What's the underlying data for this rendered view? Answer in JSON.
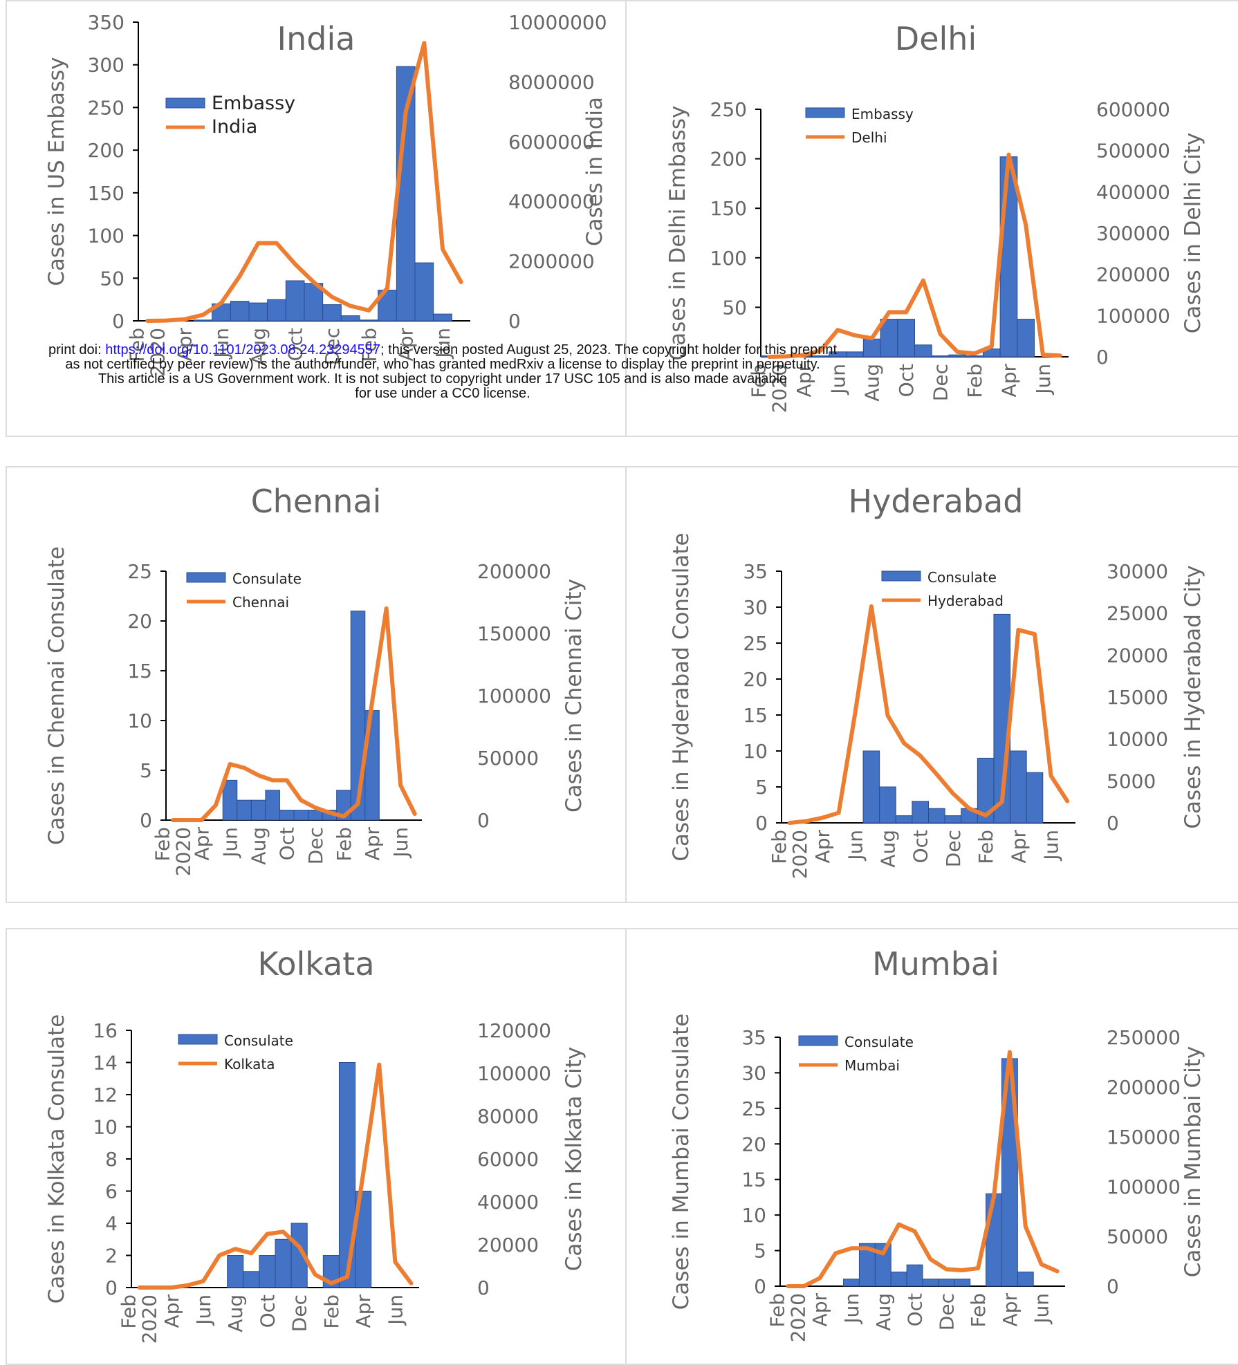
{
  "colors": {
    "bar": "#4472c4",
    "bar_stroke": "#2a4d8f",
    "line": "#ed7d31",
    "text": "#666666"
  },
  "banner": {
    "line1_prefix": "print doi: ",
    "doi": "https://doi.org/10.1101/2023.08.24.23294557",
    "line1_suffix": "; this version posted August 25, 2023. The copyright holder for this preprint",
    "line2": "as not certified by peer review) is the author/funder, who has granted medRxiv a license to display the preprint in perpetuity.",
    "line3": "This article is a US Government work. It is not subject to copyright under 17 USC 105 and is also made available",
    "line4": "for use under a CC0 license."
  },
  "chart_data": [
    {
      "type": "bar",
      "title": "India",
      "ylabel": "Cases  in US Embassy",
      "y2label": "Cases in India",
      "ylim": [
        0,
        350
      ],
      "yticks": [
        0,
        50,
        100,
        150,
        200,
        250,
        300,
        350
      ],
      "y2lim": [
        0,
        10000000
      ],
      "y2ticks": [
        0,
        2000000,
        4000000,
        6000000,
        8000000,
        10000000
      ],
      "categories": [
        "Feb 2020",
        "Mar",
        "Apr",
        "May",
        "Jun",
        "Jul",
        "Aug",
        "Sep",
        "Oct",
        "Nov",
        "Dec",
        "Jan",
        "Feb",
        "Mar",
        "Apr",
        "May",
        "Jun",
        "Jul"
      ],
      "xticklabels": [
        "Feb\n2020",
        "Apr",
        "Jun",
        "Aug",
        "Oct",
        "Dec",
        "Feb",
        "Apr",
        "Jun"
      ],
      "legend": [
        "Embassy",
        "India"
      ],
      "series": [
        {
          "name": "Embassy",
          "kind": "bar",
          "values": [
            0,
            0,
            0,
            1,
            20,
            23,
            21,
            25,
            47,
            44,
            19,
            6,
            1,
            36,
            298,
            68,
            8,
            0
          ]
        },
        {
          "name": "India",
          "kind": "line",
          "axis": "right",
          "values": [
            0,
            10000,
            50000,
            200000,
            600000,
            1500000,
            2600000,
            2600000,
            1900000,
            1300000,
            800000,
            500000,
            350000,
            1100000,
            7000000,
            9300000,
            2400000,
            1300000
          ]
        }
      ]
    },
    {
      "type": "bar",
      "title": "Delhi",
      "ylabel": "Cases in Delhi Embassy",
      "y2label": "Cases in Delhi City",
      "ylim": [
        0,
        250
      ],
      "yticks": [
        50,
        100,
        150,
        200,
        250
      ],
      "y2lim": [
        0,
        600000
      ],
      "y2ticks": [
        0,
        100000,
        200000,
        300000,
        400000,
        500000,
        600000
      ],
      "categories": [
        "Feb 2020",
        "Mar",
        "Apr",
        "May",
        "Jun",
        "Jul",
        "Aug",
        "Sep",
        "Oct",
        "Nov",
        "Dec",
        "Jan",
        "Feb",
        "Mar",
        "Apr",
        "May",
        "Jun",
        "Jul"
      ],
      "xticklabels": [
        "Feb\n2020",
        "Apr",
        "Jun",
        "Aug",
        "Oct",
        "Dec",
        "Feb",
        "Apr",
        "Jun"
      ],
      "legend": [
        "Embassy",
        "Delhi"
      ],
      "series": [
        {
          "name": "Embassy",
          "kind": "bar",
          "values": [
            1,
            1,
            1,
            1,
            5,
            5,
            18,
            38,
            38,
            12,
            1,
            2,
            1,
            8,
            202,
            38,
            0,
            0
          ]
        },
        {
          "name": "Delhi",
          "kind": "line",
          "axis": "right",
          "values": [
            0,
            1000,
            4000,
            15000,
            65000,
            52000,
            45000,
            108000,
            108000,
            185000,
            55000,
            12000,
            8000,
            25000,
            490000,
            320000,
            5000,
            3000
          ]
        }
      ]
    },
    {
      "type": "bar",
      "title": "Chennai",
      "ylabel": "Cases in Chennai Consulate",
      "y2label": "Cases in Chennai City",
      "ylim": [
        0,
        25
      ],
      "yticks": [
        0,
        5,
        10,
        15,
        20,
        25
      ],
      "y2lim": [
        0,
        200000
      ],
      "y2ticks": [
        0,
        50000,
        100000,
        150000,
        200000
      ],
      "categories": [
        "Feb 2020",
        "Mar",
        "Apr",
        "May",
        "Jun",
        "Jul",
        "Aug",
        "Sep",
        "Oct",
        "Nov",
        "Dec",
        "Jan",
        "Feb",
        "Mar",
        "Apr",
        "May",
        "Jun",
        "Jul"
      ],
      "xticklabels": [
        "Feb\n2020",
        "Apr",
        "Jun",
        "Aug",
        "Oct",
        "Dec",
        "Feb",
        "Apr",
        "Jun"
      ],
      "legend": [
        "Consulate",
        "Chennai"
      ],
      "series": [
        {
          "name": "Consulate",
          "kind": "bar",
          "values": [
            0,
            0,
            0,
            0,
            4,
            2,
            2,
            3,
            1,
            1,
            1,
            1,
            3,
            21,
            11,
            0,
            0,
            0
          ]
        },
        {
          "name": "Chennai",
          "kind": "line",
          "axis": "right",
          "values": [
            0,
            0,
            0,
            12000,
            45000,
            42000,
            36000,
            32000,
            32000,
            16000,
            10000,
            6000,
            3000,
            13000,
            95000,
            170000,
            28000,
            5000
          ]
        }
      ]
    },
    {
      "type": "bar",
      "title": "Hyderabad",
      "ylabel": "Cases in Hyderabad Consulate",
      "y2label": "Cases in Hyderabad City",
      "ylim": [
        0,
        35
      ],
      "yticks": [
        0,
        5,
        10,
        15,
        20,
        25,
        30,
        35
      ],
      "y2lim": [
        0,
        30000
      ],
      "y2ticks": [
        0,
        5000,
        10000,
        15000,
        20000,
        25000,
        30000
      ],
      "categories": [
        "Feb 2020",
        "Mar",
        "Apr",
        "May",
        "Jun",
        "Jul",
        "Aug",
        "Sep",
        "Oct",
        "Nov",
        "Dec",
        "Jan",
        "Feb",
        "Mar",
        "Apr",
        "May",
        "Jun",
        "Jul"
      ],
      "xticklabels": [
        "Feb\n2020",
        "Apr",
        "Jun",
        "Aug",
        "Oct",
        "Dec",
        "Feb",
        "Apr",
        "Jun"
      ],
      "legend": [
        "Consulate",
        "Hyderabad"
      ],
      "series": [
        {
          "name": "Consulate",
          "kind": "bar",
          "values": [
            0,
            0,
            0,
            0,
            0,
            10,
            5,
            1,
            3,
            2,
            1,
            2,
            9,
            29,
            10,
            7,
            0,
            0
          ]
        },
        {
          "name": "Hyderabad",
          "kind": "line",
          "axis": "right",
          "values": [
            0,
            200,
            600,
            1200,
            13000,
            25800,
            12800,
            9500,
            8000,
            5800,
            3500,
            1700,
            900,
            2500,
            23000,
            22500,
            5600,
            2600
          ]
        }
      ]
    },
    {
      "type": "bar",
      "title": "Kolkata",
      "ylabel": "Cases in Kolkata Consulate",
      "y2label": "Cases in Kolkata City",
      "ylim": [
        0,
        16
      ],
      "yticks": [
        0,
        2,
        4,
        6,
        8,
        10,
        12,
        14,
        16
      ],
      "y2lim": [
        0,
        120000
      ],
      "y2ticks": [
        0,
        20000,
        40000,
        60000,
        80000,
        100000,
        120000
      ],
      "categories": [
        "Feb 2020",
        "Mar",
        "Apr",
        "May",
        "Jun",
        "Jul",
        "Aug",
        "Sep",
        "Oct",
        "Nov",
        "Dec",
        "Jan",
        "Feb",
        "Mar",
        "Apr",
        "May",
        "Jun",
        "Jul"
      ],
      "xticklabels": [
        "Feb\n2020",
        "Apr",
        "Jun",
        "Aug",
        "Oct",
        "Dec",
        "Feb",
        "Apr",
        "Jun"
      ],
      "legend": [
        "Consulate",
        "Kolkata"
      ],
      "series": [
        {
          "name": "Consulate",
          "kind": "bar",
          "values": [
            0,
            0,
            0,
            0,
            0,
            0,
            2,
            1,
            2,
            3,
            4,
            0,
            2,
            14,
            6,
            0,
            0,
            0
          ]
        },
        {
          "name": "Kolkata",
          "kind": "line",
          "axis": "right",
          "values": [
            0,
            0,
            0,
            1000,
            3000,
            15000,
            18000,
            16000,
            25000,
            26000,
            19000,
            6000,
            2000,
            5000,
            53000,
            104000,
            12000,
            2000
          ]
        }
      ]
    },
    {
      "type": "bar",
      "title": "Mumbai",
      "ylabel": "Cases in Mumbai Consulate",
      "y2label": "Cases in Mumbai City",
      "ylim": [
        0,
        35
      ],
      "yticks": [
        0,
        5,
        10,
        15,
        20,
        25,
        30,
        35
      ],
      "y2lim": [
        0,
        250000
      ],
      "y2ticks": [
        0,
        50000,
        100000,
        150000,
        200000,
        250000
      ],
      "categories": [
        "Feb 2020",
        "Mar",
        "Apr",
        "May",
        "Jun",
        "Jul",
        "Aug",
        "Sep",
        "Oct",
        "Nov",
        "Dec",
        "Jan",
        "Feb",
        "Mar",
        "Apr",
        "May",
        "Jun",
        "Jul"
      ],
      "xticklabels": [
        "Feb\n2020",
        "Apr",
        "Jun",
        "Aug",
        "Oct",
        "Dec",
        "Feb",
        "Apr",
        "Jun"
      ],
      "legend": [
        "Consulate",
        "Mumbai"
      ],
      "series": [
        {
          "name": "Consulate",
          "kind": "bar",
          "values": [
            0,
            0,
            0,
            0,
            1,
            6,
            6,
            2,
            3,
            1,
            1,
            1,
            0,
            13,
            32,
            2,
            0,
            0
          ]
        },
        {
          "name": "Mumbai",
          "kind": "line",
          "axis": "right",
          "values": [
            0,
            0,
            8000,
            33000,
            38000,
            38000,
            33000,
            62000,
            55000,
            27000,
            17000,
            16000,
            18000,
            90000,
            235000,
            60000,
            22000,
            15000
          ]
        }
      ]
    }
  ]
}
